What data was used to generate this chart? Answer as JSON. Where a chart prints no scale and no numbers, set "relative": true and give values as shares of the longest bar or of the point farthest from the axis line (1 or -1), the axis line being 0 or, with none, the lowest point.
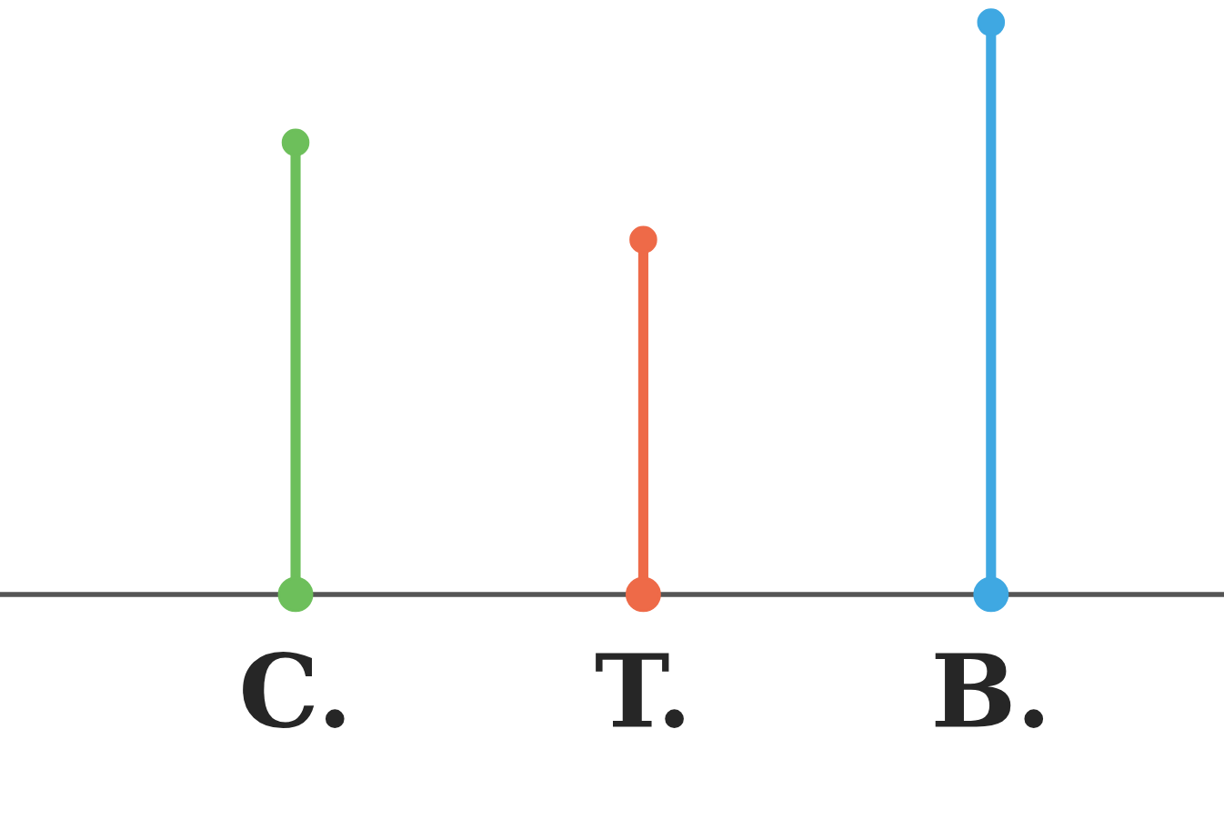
{
  "chart_data": {
    "type": "lollipop",
    "relative": true,
    "categories": [
      "C.",
      "T.",
      "B."
    ],
    "values": [
      0.79,
      0.62,
      1.0
    ],
    "colors": [
      "#6dbf5b",
      "#ee6a48",
      "#3fa8e2"
    ],
    "marker": "circle"
  }
}
